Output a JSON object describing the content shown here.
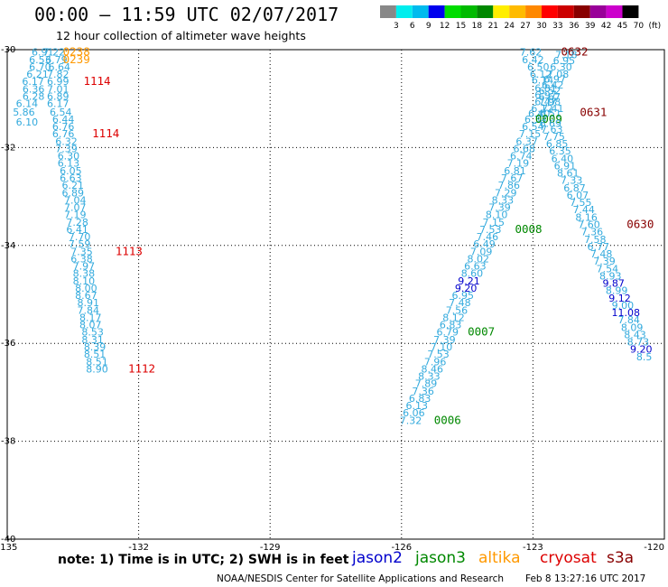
{
  "header": {
    "title": "00:00 – 11:59 UTC 02/07/2017",
    "subtitle": "12 hour collection of altimeter wave heights"
  },
  "footer": {
    "note": "note: 1) Time is in UTC; 2) SWH is in feet",
    "credit": "NOAA/NESDIS Center for Satellite Applications and Research",
    "timestamp": "Feb  8 13:27:16 UTC 2017"
  },
  "satellites": [
    {
      "name": "jason2",
      "color": "#0000cc"
    },
    {
      "name": "jason3",
      "color": "#008800"
    },
    {
      "name": "altika",
      "color": "#ff9900"
    },
    {
      "name": "cryosat",
      "color": "#dd0000"
    },
    {
      "name": "s3a",
      "color": "#880000"
    }
  ],
  "legend": {
    "labels": [
      "3",
      "6",
      "9",
      "12",
      "15",
      "18",
      "21",
      "24",
      "27",
      "30",
      "33",
      "36",
      "39",
      "42",
      "45",
      "70",
      "(ft)"
    ],
    "colors": [
      "#888888",
      "#00eeee",
      "#00bbee",
      "#0000ee",
      "#00dd00",
      "#00bb00",
      "#008800",
      "#ffee00",
      "#ffbb00",
      "#ff8800",
      "#ff0000",
      "#cc0000",
      "#880000",
      "#990099",
      "#cc00cc",
      "#000000"
    ]
  },
  "chart_data": {
    "type": "scatter",
    "xlim": [
      -135,
      -120
    ],
    "ylim": [
      -40,
      -30
    ],
    "xticks": [
      "-135",
      "-132",
      "-129",
      "-126",
      "-123",
      "-120"
    ],
    "yticks": [
      "-30",
      "-32",
      "-34",
      "-36",
      "-38",
      "-40"
    ],
    "grid": true,
    "points": [
      {
        "x": -134.19,
        "y": -30.05,
        "v": "6.91",
        "c": "#33aadd"
      },
      {
        "x": -133.93,
        "y": -30.05,
        "v": "7.22",
        "c": "#33aadd"
      },
      {
        "x": -133.42,
        "y": -30.05,
        "v": "0238",
        "c": "#ff9900"
      },
      {
        "x": -134.25,
        "y": -30.2,
        "v": "6.53",
        "c": "#33aadd"
      },
      {
        "x": -133.88,
        "y": -30.2,
        "v": "6.79",
        "c": "#33aadd"
      },
      {
        "x": -133.42,
        "y": -30.2,
        "v": "0239",
        "c": "#ff9900"
      },
      {
        "x": -134.25,
        "y": -30.35,
        "v": "6.70",
        "c": "#33aadd"
      },
      {
        "x": -133.81,
        "y": -30.35,
        "v": "6.64",
        "c": "#33aadd"
      },
      {
        "x": -134.31,
        "y": -30.5,
        "v": "6.21",
        "c": "#33aadd"
      },
      {
        "x": -133.84,
        "y": -30.5,
        "v": "7.82",
        "c": "#33aadd"
      },
      {
        "x": -134.41,
        "y": -30.65,
        "v": "6.17",
        "c": "#33aadd"
      },
      {
        "x": -133.84,
        "y": -30.65,
        "v": "6.99",
        "c": "#33aadd"
      },
      {
        "x": -132.95,
        "y": -30.65,
        "v": "1114",
        "c": "#dd0000"
      },
      {
        "x": -134.4,
        "y": -30.8,
        "v": "6.36",
        "c": "#33aadd"
      },
      {
        "x": -133.84,
        "y": -30.8,
        "v": "7.01",
        "c": "#33aadd"
      },
      {
        "x": -134.4,
        "y": -30.95,
        "v": "6.28",
        "c": "#33aadd"
      },
      {
        "x": -133.84,
        "y": -30.95,
        "v": "6.89",
        "c": "#33aadd"
      },
      {
        "x": -134.55,
        "y": -31.1,
        "v": "6.14",
        "c": "#33aadd"
      },
      {
        "x": -133.84,
        "y": -31.1,
        "v": "6.17",
        "c": "#33aadd"
      },
      {
        "x": -134.62,
        "y": -31.27,
        "v": "5.86",
        "c": "#33aadd"
      },
      {
        "x": -133.78,
        "y": -31.27,
        "v": "6.54",
        "c": "#33aadd"
      },
      {
        "x": -133.72,
        "y": -31.42,
        "v": "6.44",
        "c": "#33aadd"
      },
      {
        "x": -134.55,
        "y": -31.48,
        "v": "6.10",
        "c": "#33aadd"
      },
      {
        "x": -133.72,
        "y": -31.57,
        "v": "6.76",
        "c": "#33aadd"
      },
      {
        "x": -133.72,
        "y": -31.72,
        "v": "6.76",
        "c": "#33aadd"
      },
      {
        "x": -132.75,
        "y": -31.72,
        "v": "1114",
        "c": "#dd0000"
      },
      {
        "x": -133.65,
        "y": -31.87,
        "v": "6.32",
        "c": "#33aadd"
      },
      {
        "x": -133.65,
        "y": -32.02,
        "v": "7.39",
        "c": "#33aadd"
      },
      {
        "x": -133.6,
        "y": -32.17,
        "v": "6.30",
        "c": "#33aadd"
      },
      {
        "x": -133.6,
        "y": -32.32,
        "v": "6.13",
        "c": "#33aadd"
      },
      {
        "x": -133.55,
        "y": -32.47,
        "v": "6.05",
        "c": "#33aadd"
      },
      {
        "x": -133.55,
        "y": -32.62,
        "v": "6.63",
        "c": "#33aadd"
      },
      {
        "x": -133.5,
        "y": -32.77,
        "v": "6.21",
        "c": "#33aadd"
      },
      {
        "x": -133.5,
        "y": -32.92,
        "v": "6.89",
        "c": "#33aadd"
      },
      {
        "x": -133.45,
        "y": -33.07,
        "v": "7.04",
        "c": "#33aadd"
      },
      {
        "x": -133.45,
        "y": -33.22,
        "v": "7.07",
        "c": "#33aadd"
      },
      {
        "x": -133.45,
        "y": -33.37,
        "v": "7.19",
        "c": "#33aadd"
      },
      {
        "x": -133.4,
        "y": -33.52,
        "v": "7.28",
        "c": "#33aadd"
      },
      {
        "x": -133.4,
        "y": -33.67,
        "v": "6.41",
        "c": "#33aadd"
      },
      {
        "x": -133.35,
        "y": -33.82,
        "v": "7.70",
        "c": "#33aadd"
      },
      {
        "x": -133.35,
        "y": -33.97,
        "v": "7.59",
        "c": "#33aadd"
      },
      {
        "x": -133.3,
        "y": -34.12,
        "v": "7.35",
        "c": "#33aadd"
      },
      {
        "x": -132.22,
        "y": -34.12,
        "v": "1113",
        "c": "#dd0000"
      },
      {
        "x": -133.3,
        "y": -34.27,
        "v": "6.38",
        "c": "#33aadd"
      },
      {
        "x": -133.25,
        "y": -34.42,
        "v": "7.97",
        "c": "#33aadd"
      },
      {
        "x": -133.25,
        "y": -34.57,
        "v": "8.38",
        "c": "#33aadd"
      },
      {
        "x": -133.25,
        "y": -34.72,
        "v": "8.10",
        "c": "#33aadd"
      },
      {
        "x": -133.2,
        "y": -34.87,
        "v": "8.00",
        "c": "#33aadd"
      },
      {
        "x": -133.2,
        "y": -35.02,
        "v": "8.67",
        "c": "#33aadd"
      },
      {
        "x": -133.15,
        "y": -35.17,
        "v": "8.91",
        "c": "#33aadd"
      },
      {
        "x": -133.15,
        "y": -35.32,
        "v": "7.84",
        "c": "#33aadd"
      },
      {
        "x": -133.1,
        "y": -35.47,
        "v": "8.17",
        "c": "#33aadd"
      },
      {
        "x": -133.1,
        "y": -35.62,
        "v": "8.07",
        "c": "#33aadd"
      },
      {
        "x": -133.05,
        "y": -35.77,
        "v": "8.53",
        "c": "#33aadd"
      },
      {
        "x": -133.05,
        "y": -35.92,
        "v": "8.31",
        "c": "#33aadd"
      },
      {
        "x": -133.0,
        "y": -36.07,
        "v": "8.39",
        "c": "#33aadd"
      },
      {
        "x": -133.0,
        "y": -36.22,
        "v": "8.51",
        "c": "#33aadd"
      },
      {
        "x": -132.95,
        "y": -36.37,
        "v": "8.51",
        "c": "#33aadd"
      },
      {
        "x": -132.95,
        "y": -36.52,
        "v": "8.90",
        "c": "#33aadd"
      },
      {
        "x": -131.93,
        "y": -36.52,
        "v": "1112",
        "c": "#dd0000"
      },
      {
        "x": -123.05,
        "y": -30.05,
        "v": "7.62",
        "c": "#33aadd"
      },
      {
        "x": -122.05,
        "y": -30.05,
        "v": "0632",
        "c": "#880000"
      },
      {
        "x": -122.24,
        "y": -30.1,
        "v": "7.18",
        "c": "#33aadd"
      },
      {
        "x": -123.0,
        "y": -30.2,
        "v": "6.42",
        "c": "#33aadd"
      },
      {
        "x": -122.29,
        "y": -30.22,
        "v": "6.95",
        "c": "#33aadd"
      },
      {
        "x": -122.88,
        "y": -30.35,
        "v": "6.50",
        "c": "#33aadd"
      },
      {
        "x": -122.36,
        "y": -30.35,
        "v": "6.30",
        "c": "#33aadd"
      },
      {
        "x": -122.82,
        "y": -30.5,
        "v": "6.12",
        "c": "#33aadd"
      },
      {
        "x": -122.43,
        "y": -30.5,
        "v": "7.08",
        "c": "#33aadd"
      },
      {
        "x": -122.78,
        "y": -30.62,
        "v": "6.14",
        "c": "#33aadd"
      },
      {
        "x": -122.5,
        "y": -30.6,
        "v": "6.97",
        "c": "#33aadd"
      },
      {
        "x": -122.55,
        "y": -30.72,
        "v": "6.42",
        "c": "#33aadd"
      },
      {
        "x": -122.71,
        "y": -30.78,
        "v": "6.81",
        "c": "#33aadd"
      },
      {
        "x": -122.62,
        "y": -30.84,
        "v": "6.52",
        "c": "#33aadd"
      },
      {
        "x": -122.71,
        "y": -30.92,
        "v": "6.97",
        "c": "#33aadd"
      },
      {
        "x": -122.62,
        "y": -30.96,
        "v": "6.67",
        "c": "#33aadd"
      },
      {
        "x": -122.71,
        "y": -31.06,
        "v": "6.47",
        "c": "#33aadd"
      },
      {
        "x": -122.62,
        "y": -31.06,
        "v": "7.98",
        "c": "#33aadd"
      },
      {
        "x": -122.79,
        "y": -31.2,
        "v": "6.12",
        "c": "#33aadd"
      },
      {
        "x": -122.55,
        "y": -31.2,
        "v": "7.41",
        "c": "#33aadd"
      },
      {
        "x": -122.86,
        "y": -31.3,
        "v": "6.40",
        "c": "#33aadd"
      },
      {
        "x": -122.6,
        "y": -31.3,
        "v": "6.51",
        "c": "#33aadd"
      },
      {
        "x": -121.62,
        "y": -31.28,
        "v": "0631",
        "c": "#880000"
      },
      {
        "x": -122.94,
        "y": -31.42,
        "v": "6.33",
        "c": "#33aadd"
      },
      {
        "x": -122.64,
        "y": -31.42,
        "v": "0009",
        "c": "#008800"
      },
      {
        "x": -122.6,
        "y": -31.5,
        "v": "6.69",
        "c": "#33aadd"
      },
      {
        "x": -123.0,
        "y": -31.57,
        "v": "6.54",
        "c": "#33aadd"
      },
      {
        "x": -122.57,
        "y": -31.62,
        "v": "7.63",
        "c": "#33aadd"
      },
      {
        "x": -123.07,
        "y": -31.72,
        "v": "7.15",
        "c": "#33aadd"
      },
      {
        "x": -122.52,
        "y": -31.77,
        "v": "7.75",
        "c": "#33aadd"
      },
      {
        "x": -123.14,
        "y": -31.87,
        "v": "6.37",
        "c": "#33aadd"
      },
      {
        "x": -122.45,
        "y": -31.92,
        "v": "6.85",
        "c": "#33aadd"
      },
      {
        "x": -123.2,
        "y": -32.02,
        "v": "6.68",
        "c": "#33aadd"
      },
      {
        "x": -123.27,
        "y": -32.17,
        "v": "6.74",
        "c": "#33aadd"
      },
      {
        "x": -122.38,
        "y": -32.07,
        "v": "6.35",
        "c": "#33aadd"
      },
      {
        "x": -123.34,
        "y": -32.32,
        "v": "7.19",
        "c": "#33aadd"
      },
      {
        "x": -122.33,
        "y": -32.22,
        "v": "6.40",
        "c": "#33aadd"
      },
      {
        "x": -123.41,
        "y": -32.47,
        "v": "6.81",
        "c": "#33aadd"
      },
      {
        "x": -122.27,
        "y": -32.37,
        "v": "6.91",
        "c": "#33aadd"
      },
      {
        "x": -123.48,
        "y": -32.62,
        "v": "7.67",
        "c": "#33aadd"
      },
      {
        "x": -122.2,
        "y": -32.52,
        "v": "8.61",
        "c": "#33aadd"
      },
      {
        "x": -123.55,
        "y": -32.77,
        "v": "7.86",
        "c": "#33aadd"
      },
      {
        "x": -123.62,
        "y": -32.92,
        "v": "7.29",
        "c": "#33aadd"
      },
      {
        "x": -122.12,
        "y": -32.67,
        "v": "7.33",
        "c": "#33aadd"
      },
      {
        "x": -123.69,
        "y": -33.07,
        "v": "8.33",
        "c": "#33aadd"
      },
      {
        "x": -122.05,
        "y": -32.82,
        "v": "6.87",
        "c": "#33aadd"
      },
      {
        "x": -123.76,
        "y": -33.22,
        "v": "7.39",
        "c": "#33aadd"
      },
      {
        "x": -121.98,
        "y": -32.97,
        "v": "6.07",
        "c": "#33aadd"
      },
      {
        "x": -123.83,
        "y": -33.37,
        "v": "8.10",
        "c": "#33aadd"
      },
      {
        "x": -121.91,
        "y": -33.12,
        "v": "7.55",
        "c": "#33aadd"
      },
      {
        "x": -123.9,
        "y": -33.52,
        "v": "7.15",
        "c": "#33aadd"
      },
      {
        "x": -121.84,
        "y": -33.27,
        "v": "7.44",
        "c": "#33aadd"
      },
      {
        "x": -123.97,
        "y": -33.67,
        "v": "7.53",
        "c": "#33aadd"
      },
      {
        "x": -123.1,
        "y": -33.67,
        "v": "0008",
        "c": "#008800"
      },
      {
        "x": -121.78,
        "y": -33.42,
        "v": "8.16",
        "c": "#33aadd"
      },
      {
        "x": -124.04,
        "y": -33.82,
        "v": "7.46",
        "c": "#33aadd"
      },
      {
        "x": -121.72,
        "y": -33.57,
        "v": "7.60",
        "c": "#33aadd"
      },
      {
        "x": -120.55,
        "y": -33.57,
        "v": "0630",
        "c": "#880000"
      },
      {
        "x": -124.11,
        "y": -33.97,
        "v": "6.49",
        "c": "#33aadd"
      },
      {
        "x": -121.65,
        "y": -33.72,
        "v": "7.36",
        "c": "#33aadd"
      },
      {
        "x": -124.18,
        "y": -34.12,
        "v": "7.09",
        "c": "#33aadd"
      },
      {
        "x": -121.58,
        "y": -33.87,
        "v": "7.58",
        "c": "#33aadd"
      },
      {
        "x": -124.25,
        "y": -34.27,
        "v": "8.02",
        "c": "#33aadd"
      },
      {
        "x": -121.51,
        "y": -34.02,
        "v": "6.77",
        "c": "#33aadd"
      },
      {
        "x": -124.32,
        "y": -34.42,
        "v": "6.63",
        "c": "#33aadd"
      },
      {
        "x": -121.44,
        "y": -34.17,
        "v": "7.48",
        "c": "#33aadd"
      },
      {
        "x": -124.39,
        "y": -34.57,
        "v": "8.60",
        "c": "#33aadd"
      },
      {
        "x": -121.37,
        "y": -34.32,
        "v": "7.39",
        "c": "#33aadd"
      },
      {
        "x": -124.46,
        "y": -34.72,
        "v": "9.21",
        "c": "#0000cc"
      },
      {
        "x": -121.3,
        "y": -34.47,
        "v": "7.54",
        "c": "#33aadd"
      },
      {
        "x": -124.53,
        "y": -34.87,
        "v": "9.20",
        "c": "#0000cc"
      },
      {
        "x": -121.23,
        "y": -34.62,
        "v": "8.93",
        "c": "#33aadd"
      },
      {
        "x": -124.6,
        "y": -35.02,
        "v": "6.95",
        "c": "#33aadd"
      },
      {
        "x": -121.16,
        "y": -34.77,
        "v": "9.87",
        "c": "#0000cc"
      },
      {
        "x": -124.67,
        "y": -35.17,
        "v": "7.48",
        "c": "#33aadd"
      },
      {
        "x": -121.09,
        "y": -34.92,
        "v": "8.99",
        "c": "#33aadd"
      },
      {
        "x": -124.74,
        "y": -35.32,
        "v": "7.56",
        "c": "#33aadd"
      },
      {
        "x": -121.02,
        "y": -35.07,
        "v": "9.12",
        "c": "#0000cc"
      },
      {
        "x": -124.81,
        "y": -35.47,
        "v": "8.12",
        "c": "#33aadd"
      },
      {
        "x": -120.95,
        "y": -35.22,
        "v": "9.00",
        "c": "#33aadd"
      },
      {
        "x": -124.88,
        "y": -35.62,
        "v": "6.83",
        "c": "#33aadd"
      },
      {
        "x": -120.88,
        "y": -35.37,
        "v": "11.08",
        "c": "#0000cc"
      },
      {
        "x": -124.95,
        "y": -35.77,
        "v": "6.79",
        "c": "#33aadd"
      },
      {
        "x": -124.18,
        "y": -35.77,
        "v": "0007",
        "c": "#008800"
      },
      {
        "x": -120.81,
        "y": -35.52,
        "v": "7.84",
        "c": "#33aadd"
      },
      {
        "x": -125.02,
        "y": -35.92,
        "v": "7.39",
        "c": "#33aadd"
      },
      {
        "x": -120.74,
        "y": -35.67,
        "v": "8.09",
        "c": "#33aadd"
      },
      {
        "x": -125.09,
        "y": -36.07,
        "v": "7.10",
        "c": "#33aadd"
      },
      {
        "x": -120.67,
        "y": -35.82,
        "v": "8.43",
        "c": "#33aadd"
      },
      {
        "x": -125.16,
        "y": -36.22,
        "v": "7.53",
        "c": "#33aadd"
      },
      {
        "x": -120.6,
        "y": -35.97,
        "v": "8.73",
        "c": "#33aadd"
      },
      {
        "x": -125.23,
        "y": -36.37,
        "v": "7.96",
        "c": "#33aadd"
      },
      {
        "x": -120.53,
        "y": -36.12,
        "v": "9.20",
        "c": "#0000cc"
      },
      {
        "x": -125.3,
        "y": -36.52,
        "v": "8.46",
        "c": "#33aadd"
      },
      {
        "x": -120.46,
        "y": -36.27,
        "v": "8.5",
        "c": "#33aadd"
      },
      {
        "x": -125.37,
        "y": -36.67,
        "v": "8.33",
        "c": "#33aadd"
      },
      {
        "x": -125.44,
        "y": -36.82,
        "v": "7.89",
        "c": "#33aadd"
      },
      {
        "x": -125.51,
        "y": -36.97,
        "v": "7.36",
        "c": "#33aadd"
      },
      {
        "x": -125.58,
        "y": -37.12,
        "v": "6.83",
        "c": "#33aadd"
      },
      {
        "x": -125.65,
        "y": -37.27,
        "v": "6.13",
        "c": "#33aadd"
      },
      {
        "x": -125.72,
        "y": -37.42,
        "v": "6.06",
        "c": "#33aadd"
      },
      {
        "x": -125.79,
        "y": -37.57,
        "v": "7.32",
        "c": "#33aadd"
      },
      {
        "x": -124.95,
        "y": -37.57,
        "v": "0006",
        "c": "#008800"
      }
    ]
  }
}
